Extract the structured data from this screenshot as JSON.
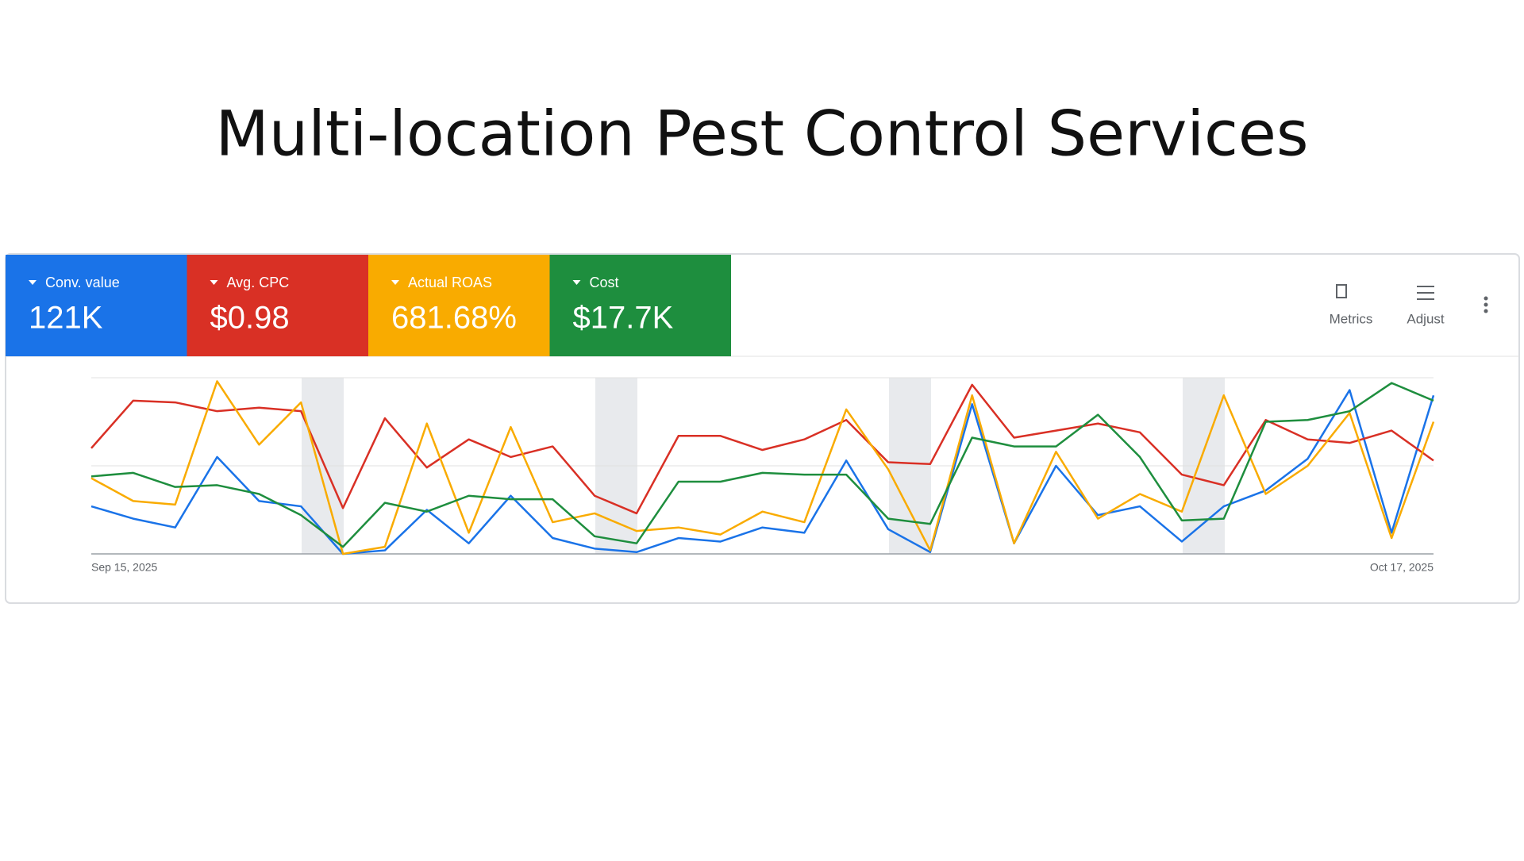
{
  "title": "Multi-location Pest Control Services",
  "toolbar": {
    "metrics": "Metrics",
    "adjust": "Adjust"
  },
  "chart_data": {
    "type": "line",
    "categories": [
      "Sep 15, 2025",
      null,
      null,
      null,
      null,
      null,
      null,
      null,
      null,
      null,
      null,
      null,
      null,
      null,
      null,
      null,
      null,
      null,
      null,
      null,
      null,
      null,
      null,
      null,
      null,
      null,
      null,
      null,
      null,
      null,
      null,
      null,
      "Oct 17, 2025"
    ],
    "ylim": [
      0,
      100
    ],
    "series": [
      {
        "name": "Conv. value",
        "total": "121K",
        "color": "#1a73e8",
        "values": [
          27,
          20,
          15,
          55,
          30,
          27,
          0,
          2,
          25,
          6,
          33,
          9,
          3,
          1,
          9,
          7,
          15,
          12,
          53,
          14,
          1,
          85,
          6,
          50,
          22,
          27,
          7,
          27,
          36,
          54,
          93,
          12,
          90
        ]
      },
      {
        "name": "Avg. CPC",
        "total": "$0.98",
        "color": "#d93025",
        "values": [
          60,
          87,
          86,
          81,
          83,
          81,
          26,
          77,
          49,
          65,
          55,
          61,
          33,
          23,
          67,
          67,
          59,
          65,
          76,
          52,
          51,
          96,
          66,
          70,
          74,
          69,
          45,
          39,
          76,
          65,
          63,
          70,
          53
        ]
      },
      {
        "name": "Actual ROAS",
        "total": "681.68%",
        "color": "#f9ab00",
        "values": [
          43,
          30,
          28,
          98,
          62,
          86,
          0,
          4,
          74,
          12,
          72,
          18,
          23,
          13,
          15,
          11,
          24,
          18,
          82,
          48,
          2,
          90,
          6,
          58,
          20,
          34,
          24,
          90,
          34,
          50,
          80,
          9,
          75
        ]
      },
      {
        "name": "Cost",
        "total": "$17.7K",
        "color": "#1e8e3e",
        "values": [
          44,
          46,
          38,
          39,
          34,
          22,
          4,
          29,
          24,
          33,
          31,
          31,
          10,
          6,
          41,
          41,
          46,
          45,
          45,
          20,
          17,
          66,
          61,
          61,
          79,
          55,
          19,
          20,
          75,
          76,
          81,
          97,
          87
        ]
      }
    ]
  }
}
